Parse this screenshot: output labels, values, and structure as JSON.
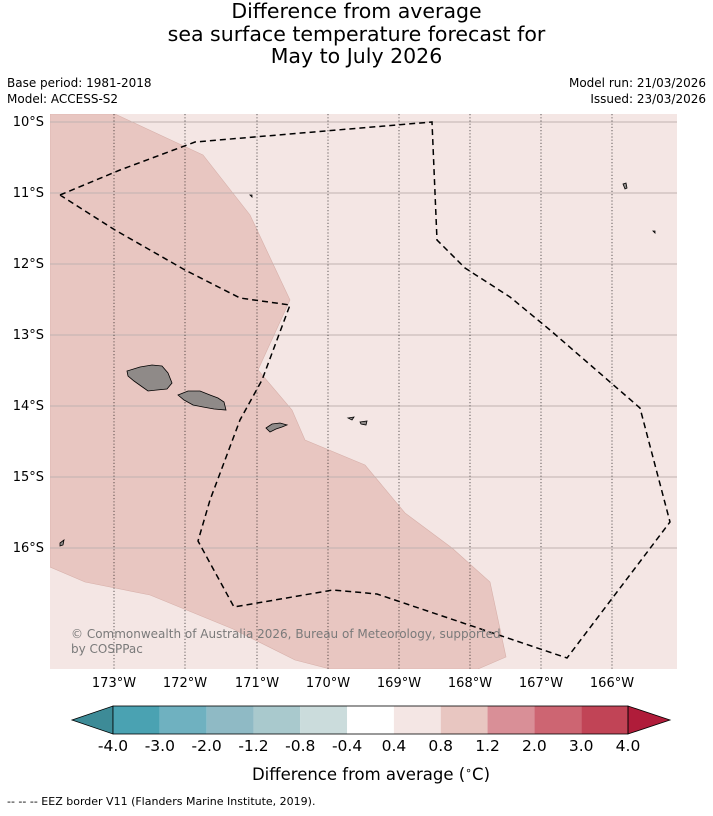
{
  "title": {
    "lines": [
      "Difference from average",
      "sea surface temperature forecast for",
      "May to July 2026"
    ]
  },
  "meta": {
    "base_period": "Base period: 1981-2018",
    "model": "Model: ACCESS-S2",
    "model_run": "Model run: 21/03/2026",
    "issued": "Issued: 23/03/2026"
  },
  "map": {
    "lat_labels": [
      "10°S",
      "11°S",
      "12°S",
      "13°S",
      "14°S",
      "15°S",
      "16°S"
    ],
    "lon_labels": [
      "173°W",
      "172°W",
      "171°W",
      "170°W",
      "169°W",
      "168°W",
      "167°W",
      "166°W"
    ],
    "copyright_line1": "© Commonwealth of Australia 2026, Bureau of Meteorology, supported",
    "copyright_line2": "by COSPPac",
    "colors": {
      "ocean_light": "#f4e6e4",
      "ocean_warm": "#e8c6c1",
      "land": "#8f8a88",
      "eez": "#000000"
    }
  },
  "colorbar": {
    "tick_labels": [
      "-4.0",
      "-3.0",
      "-2.0",
      "-1.2",
      "-0.8",
      "-0.4",
      "0.4",
      "0.8",
      "1.2",
      "2.0",
      "3.0",
      "4.0"
    ],
    "colors": [
      "#3d8b97",
      "#4aa2b2",
      "#6fb1c0",
      "#8fbac5",
      "#a9c9cd",
      "#cbdcdc",
      "#ffffff",
      "#f4e6e4",
      "#e8c6c1",
      "#d98f97",
      "#cd6572",
      "#c14456",
      "#b01c3a"
    ],
    "label": "Difference from average ($^\\circ$C)",
    "label_text": "Difference from average (",
    "label_unit": "C)"
  },
  "footer": {
    "legend": "--  --  -- EEZ border V11 (Flanders Marine Institute, 2019)."
  }
}
